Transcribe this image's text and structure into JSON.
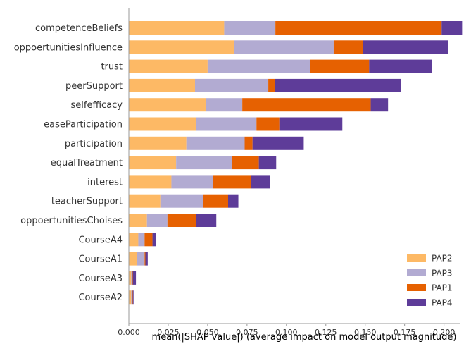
{
  "chart_data": {
    "type": "bar",
    "orientation": "horizontal",
    "stacked": true,
    "xlabel": "mean(|SHAP value|) (average impact on model output magnitude)",
    "ylabel": "",
    "xlim": [
      0,
      0.21
    ],
    "xticks": [
      "0.000",
      "0.025",
      "0.050",
      "0.075",
      "0.100",
      "0.125",
      "0.150",
      "0.175",
      "0.200"
    ],
    "grid": false,
    "legend_position": "bottom-right",
    "categories": [
      "competenceBeliefs",
      "oppoertunitiesInfluence",
      "trust",
      "peerSupport",
      "selfefficacy",
      "easeParticipation",
      "participation",
      "equalTreatment",
      "interest",
      "teacherSupport",
      "oppoertunitiesChoises",
      "CourseA4",
      "CourseA1",
      "CourseA3",
      "CourseA2"
    ],
    "series": [
      {
        "name": "PAP2",
        "color": "#fdb965",
        "values": [
          0.0605,
          0.067,
          0.05,
          0.042,
          0.049,
          0.0425,
          0.0365,
          0.03,
          0.027,
          0.02,
          0.0115,
          0.006,
          0.005,
          0.0015,
          0.0015
        ]
      },
      {
        "name": "PAP3",
        "color": "#b2abd2",
        "values": [
          0.0325,
          0.063,
          0.065,
          0.0465,
          0.023,
          0.0385,
          0.037,
          0.0355,
          0.0265,
          0.027,
          0.013,
          0.004,
          0.005,
          0.0005,
          0.0005
        ]
      },
      {
        "name": "PAP1",
        "color": "#e66101",
        "values": [
          0.1055,
          0.0185,
          0.0375,
          0.004,
          0.0815,
          0.0145,
          0.005,
          0.017,
          0.024,
          0.016,
          0.018,
          0.005,
          0.0005,
          0.0005,
          0.0005
        ]
      },
      {
        "name": "PAP4",
        "color": "#5e3c99",
        "values": [
          0.013,
          0.054,
          0.04,
          0.08,
          0.011,
          0.04,
          0.0325,
          0.011,
          0.012,
          0.0065,
          0.013,
          0.002,
          0.0015,
          0.002,
          0.0005
        ]
      }
    ]
  }
}
